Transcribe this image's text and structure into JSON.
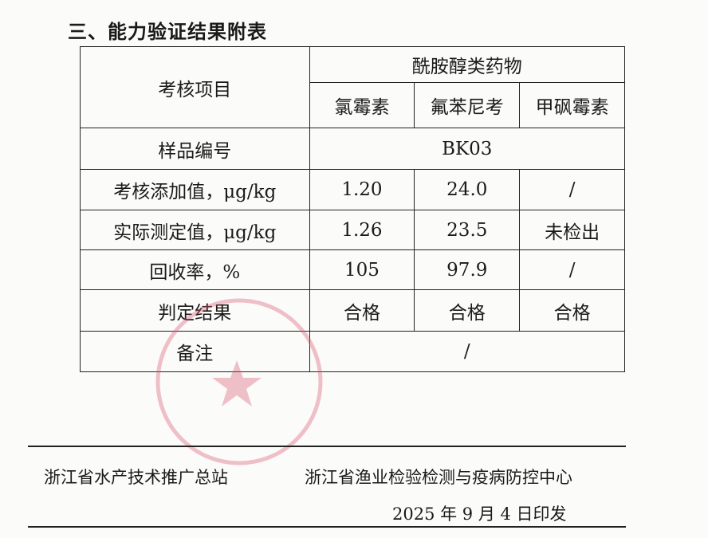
{
  "title": "三、能力验证结果附表",
  "table": {
    "item_header": "考核项目",
    "group_header": "酰胺醇类药物",
    "drugs": [
      "氯霉素",
      "氟苯尼考",
      "甲砜霉素"
    ],
    "sample_label": "样品编号",
    "sample_value": "BK03",
    "rows": [
      {
        "label": "考核添加值，μg/kg",
        "values": [
          "1.20",
          "24.0",
          "/"
        ]
      },
      {
        "label": "实际测定值，μg/kg",
        "values": [
          "1.26",
          "23.5",
          "未检出"
        ]
      },
      {
        "label": "回收率，%",
        "values": [
          "105",
          "97.9",
          "/"
        ]
      },
      {
        "label": "判定结果",
        "values": [
          "合格",
          "合格",
          "合格"
        ]
      }
    ],
    "remark_label": "备注",
    "remark_value": "/"
  },
  "footer": {
    "org1": "浙江省水产技术推广总站",
    "org2": "浙江省渔业检验检测与疫病防控中心",
    "date": "2025 年 9 月 4 日印发"
  },
  "stamp_color": "#d9536b"
}
